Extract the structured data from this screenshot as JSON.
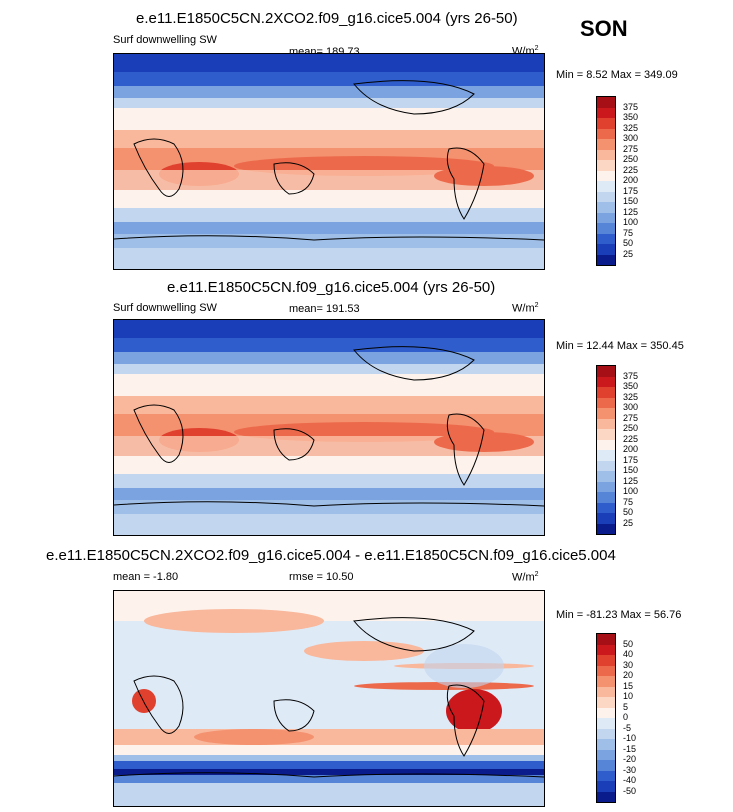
{
  "season": "SON",
  "panels": [
    {
      "title": "e.e11.E1850C5CN.2XCO2.f09_g16.cice5.004 (yrs 26-50)",
      "left_label": "Surf downwelling SW",
      "mean_label": "mean= 189.73",
      "units_base": "W/m",
      "units_exp": "2",
      "minmax": "Min =   8.52 Max = 349.09",
      "colorbar_ticks": [
        "375",
        "350",
        "325",
        "300",
        "275",
        "250",
        "225",
        "200",
        "175",
        "150",
        "125",
        "100",
        "75",
        "50",
        "25"
      ],
      "colorbar_colors": [
        "#a50f15",
        "#cb181d",
        "#e0402e",
        "#ec6a4b",
        "#f4916f",
        "#f9b79b",
        "#fcd8c4",
        "#fdf3ec",
        "#dfeaf7",
        "#c2d6f0",
        "#9fbfe8",
        "#7aa3e0",
        "#5684d6",
        "#2f5ecc",
        "#1a3eb8",
        "#0a1c8c"
      ]
    },
    {
      "title": "e.e11.E1850C5CN.f09_g16.cice5.004 (yrs 26-50)",
      "left_label": "Surf downwelling SW",
      "mean_label": "mean= 191.53",
      "units_base": "W/m",
      "units_exp": "2",
      "minmax": "Min =  12.44 Max = 350.45",
      "colorbar_ticks": [
        "375",
        "350",
        "325",
        "300",
        "275",
        "250",
        "225",
        "200",
        "175",
        "150",
        "125",
        "100",
        "75",
        "50",
        "25"
      ],
      "colorbar_colors": [
        "#a50f15",
        "#cb181d",
        "#e0402e",
        "#ec6a4b",
        "#f4916f",
        "#f9b79b",
        "#fcd8c4",
        "#fdf3ec",
        "#dfeaf7",
        "#c2d6f0",
        "#9fbfe8",
        "#7aa3e0",
        "#5684d6",
        "#2f5ecc",
        "#1a3eb8",
        "#0a1c8c"
      ]
    },
    {
      "title": "e.e11.E1850C5CN.2XCO2.f09_g16.cice5.004 - e.e11.E1850C5CN.f09_g16.cice5.004",
      "left_label": "mean =  -1.80",
      "mean_label": "rmse =  10.50",
      "units_base": "W/m",
      "units_exp": "2",
      "minmax": "Min = -81.23 Max =  56.76",
      "colorbar_ticks": [
        "50",
        "40",
        "30",
        "20",
        "15",
        "10",
        "5",
        "0",
        "-5",
        "-10",
        "-15",
        "-20",
        "-30",
        "-40",
        "-50"
      ],
      "colorbar_colors": [
        "#a50f15",
        "#cb181d",
        "#e0402e",
        "#ec6a4b",
        "#f4916f",
        "#f9b79b",
        "#fcd8c4",
        "#fdf3ec",
        "#dfeaf7",
        "#c2d6f0",
        "#9fbfe8",
        "#7aa3e0",
        "#5684d6",
        "#2f5ecc",
        "#1a3eb8",
        "#0a1c8c"
      ]
    }
  ],
  "chart_data": [
    {
      "type": "heatmap",
      "title": "e.e11.E1850C5CN.2XCO2.f09_g16.cice5.004 (yrs 26-50)",
      "variable": "Surf downwelling SW",
      "units": "W/m2",
      "mean": 189.73,
      "min": 8.52,
      "max": 349.09,
      "levels": [
        25,
        50,
        75,
        100,
        125,
        150,
        175,
        200,
        225,
        250,
        275,
        300,
        325,
        350,
        375
      ]
    },
    {
      "type": "heatmap",
      "title": "e.e11.E1850C5CN.f09_g16.cice5.004 (yrs 26-50)",
      "variable": "Surf downwelling SW",
      "units": "W/m2",
      "mean": 191.53,
      "min": 12.44,
      "max": 350.45,
      "levels": [
        25,
        50,
        75,
        100,
        125,
        150,
        175,
        200,
        225,
        250,
        275,
        300,
        325,
        350,
        375
      ]
    },
    {
      "type": "heatmap",
      "title": "e.e11.E1850C5CN.2XCO2.f09_g16.cice5.004 - e.e11.E1850C5CN.f09_g16.cice5.004",
      "units": "W/m2",
      "mean": -1.8,
      "rmse": 10.5,
      "min": -81.23,
      "max": 56.76,
      "levels": [
        -50,
        -40,
        -30,
        -20,
        -15,
        -10,
        -5,
        0,
        5,
        10,
        15,
        20,
        30,
        40,
        50
      ]
    }
  ]
}
